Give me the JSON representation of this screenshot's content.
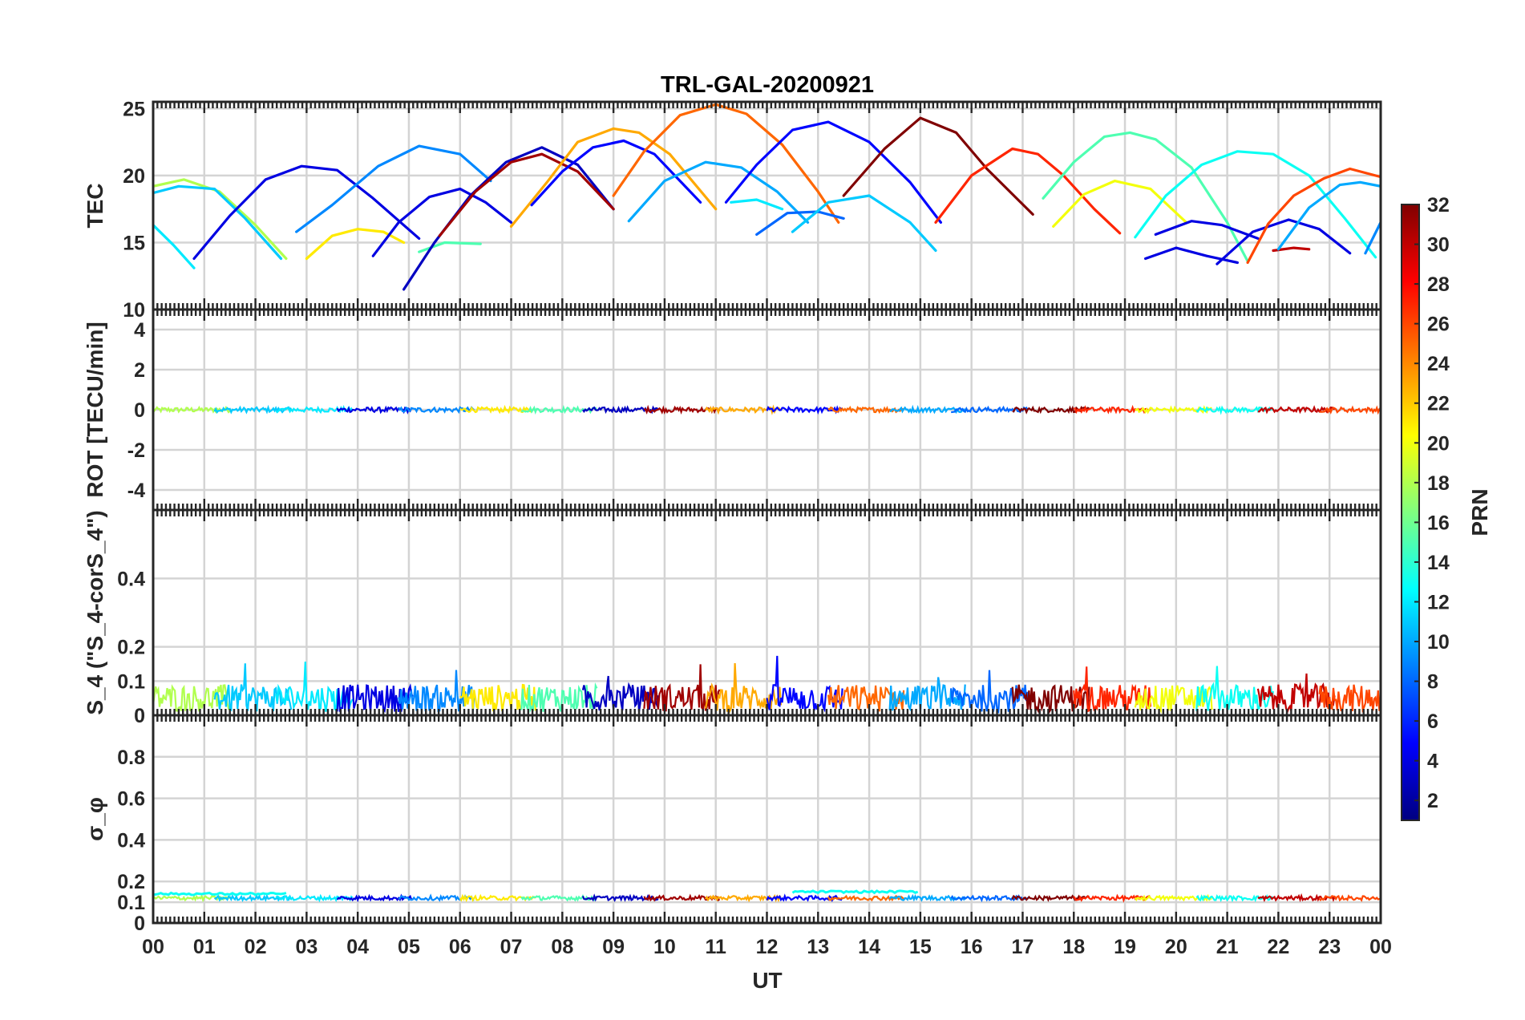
{
  "chart_data": {
    "type": "line",
    "title": "TRL-GAL-20200921",
    "xlabel": "UT",
    "x_ticks": [
      "00",
      "01",
      "02",
      "03",
      "04",
      "05",
      "06",
      "07",
      "08",
      "09",
      "10",
      "11",
      "12",
      "13",
      "14",
      "15",
      "16",
      "17",
      "18",
      "19",
      "20",
      "21",
      "22",
      "23",
      "00"
    ],
    "xlim": [
      0,
      24
    ],
    "grid": true,
    "colorbar": {
      "label": "PRN",
      "range": [
        1,
        32
      ],
      "ticks": [
        "2",
        "4",
        "6",
        "8",
        "10",
        "12",
        "14",
        "16",
        "18",
        "20",
        "22",
        "24",
        "26",
        "28",
        "30",
        "32"
      ],
      "colormap": "jet"
    },
    "panels": [
      {
        "ylabel": "TEC",
        "ylim": [
          10,
          25.5
        ],
        "y_ticks": [
          "10",
          "15",
          "20",
          "25"
        ],
        "series": [
          {
            "prn": 18,
            "x": [
              0.0,
              0.6,
              1.3,
              2.0,
              2.6
            ],
            "y": [
              19.2,
              19.7,
              18.8,
              16.3,
              13.8
            ]
          },
          {
            "prn": 11,
            "x": [
              0.0,
              0.5,
              1.2,
              1.8,
              2.5
            ],
            "y": [
              18.7,
              19.2,
              19.0,
              16.8,
              13.8
            ]
          },
          {
            "prn": 12,
            "x": [
              0.0,
              0.4,
              0.8
            ],
            "y": [
              16.3,
              14.8,
              13.1
            ]
          },
          {
            "prn": 4,
            "x": [
              0.8,
              1.5,
              2.2,
              2.9,
              3.6,
              4.3,
              5.2
            ],
            "y": [
              13.8,
              17.0,
              19.7,
              20.7,
              20.4,
              18.3,
              15.3
            ]
          },
          {
            "prn": 9,
            "x": [
              2.8,
              3.5,
              4.4,
              5.2,
              6.0,
              6.6
            ],
            "y": [
              15.8,
              17.8,
              20.7,
              22.2,
              21.6,
              19.6
            ]
          },
          {
            "prn": 21,
            "x": [
              3.0,
              3.5,
              4.0,
              4.5,
              4.9
            ],
            "y": [
              13.8,
              15.5,
              16.0,
              15.8,
              15.0
            ]
          },
          {
            "prn": 4,
            "x": [
              4.3,
              4.8,
              5.4,
              6.0,
              6.5,
              7.0
            ],
            "y": [
              14.0,
              16.5,
              18.4,
              19.0,
              18.0,
              16.5
            ]
          },
          {
            "prn": 15,
            "x": [
              5.2,
              5.7,
              6.4
            ],
            "y": [
              14.3,
              15.0,
              14.9
            ]
          },
          {
            "prn": 3,
            "x": [
              4.9,
              5.5,
              6.2,
              6.9,
              7.6,
              8.3,
              9.0
            ],
            "y": [
              11.5,
              15.0,
              18.5,
              21.0,
              22.1,
              20.8,
              17.5
            ]
          },
          {
            "prn": 31,
            "x": [
              5.6,
              6.3,
              7.0,
              7.6,
              8.3,
              9.0
            ],
            "y": [
              15.5,
              18.8,
              21.0,
              21.6,
              20.3,
              17.5
            ]
          },
          {
            "prn": 23,
            "x": [
              7.0,
              7.7,
              8.3,
              9.0,
              9.5,
              10.1,
              11.0
            ],
            "y": [
              16.2,
              19.5,
              22.5,
              23.5,
              23.2,
              21.6,
              17.5
            ]
          },
          {
            "prn": 5,
            "x": [
              7.4,
              8.0,
              8.6,
              9.2,
              9.8,
              10.3,
              10.7
            ],
            "y": [
              17.8,
              20.3,
              22.1,
              22.6,
              21.6,
              19.6,
              18.0
            ]
          },
          {
            "prn": 25,
            "x": [
              9.0,
              9.6,
              10.3,
              11.0,
              11.6,
              12.3,
              13.0,
              13.4
            ],
            "y": [
              18.5,
              21.8,
              24.5,
              25.3,
              24.6,
              22.3,
              18.8,
              16.5
            ]
          },
          {
            "prn": 10,
            "x": [
              9.3,
              10.0,
              10.8,
              11.5,
              12.2,
              12.8
            ],
            "y": [
              16.6,
              19.6,
              21.0,
              20.6,
              18.8,
              16.5
            ]
          },
          {
            "prn": 5,
            "x": [
              11.2,
              11.8,
              12.5,
              13.2,
              14.0,
              14.8,
              15.4
            ],
            "y": [
              18.0,
              20.8,
              23.4,
              24.0,
              22.5,
              19.5,
              16.5
            ]
          },
          {
            "prn": 12,
            "x": [
              11.3,
              11.8,
              12.3
            ],
            "y": [
              18.0,
              18.2,
              17.5
            ]
          },
          {
            "prn": 8,
            "x": [
              11.8,
              12.4,
              13.0,
              13.5
            ],
            "y": [
              15.6,
              17.2,
              17.3,
              16.8
            ]
          },
          {
            "prn": 11,
            "x": [
              12.5,
              13.2,
              14.0,
              14.8,
              15.3
            ],
            "y": [
              15.8,
              18.0,
              18.5,
              16.5,
              14.4
            ]
          },
          {
            "prn": 32,
            "x": [
              13.5,
              14.3,
              15.0,
              15.7,
              16.3,
              17.2
            ],
            "y": [
              18.5,
              22.0,
              24.3,
              23.2,
              20.5,
              17.1
            ]
          },
          {
            "prn": 27,
            "x": [
              15.3,
              16.0,
              16.8,
              17.3,
              17.8,
              18.4,
              18.9
            ],
            "y": [
              16.5,
              20.0,
              22.0,
              21.6,
              20.0,
              17.5,
              15.7
            ]
          },
          {
            "prn": 15,
            "x": [
              17.4,
              18.0,
              18.6,
              19.1,
              19.6,
              20.3,
              21.0,
              21.4
            ],
            "y": [
              18.3,
              21.0,
              22.9,
              23.2,
              22.7,
              20.6,
              16.5,
              13.6
            ]
          },
          {
            "prn": 20,
            "x": [
              17.6,
              18.2,
              18.8,
              19.5,
              20.2
            ],
            "y": [
              16.2,
              18.6,
              19.6,
              19.0,
              16.5
            ]
          },
          {
            "prn": 13,
            "x": [
              19.2,
              19.8,
              20.5,
              21.2,
              21.9,
              22.6,
              23.3,
              23.9
            ],
            "y": [
              15.4,
              18.5,
              20.8,
              21.8,
              21.6,
              20.0,
              16.8,
              13.9
            ]
          },
          {
            "prn": 4,
            "x": [
              19.4,
              20.0,
              20.6,
              21.2
            ],
            "y": [
              13.8,
              14.6,
              14.0,
              13.5
            ]
          },
          {
            "prn": 4,
            "x": [
              19.6,
              20.3,
              20.9,
              21.6
            ],
            "y": [
              15.6,
              16.6,
              16.3,
              15.3
            ]
          },
          {
            "prn": 4,
            "x": [
              20.8,
              21.5,
              22.2,
              22.8,
              23.4
            ],
            "y": [
              13.4,
              15.8,
              16.7,
              16.0,
              14.2
            ]
          },
          {
            "prn": 30,
            "x": [
              21.9,
              22.3,
              22.6
            ],
            "y": [
              14.4,
              14.6,
              14.5
            ]
          },
          {
            "prn": 26,
            "x": [
              21.4,
              21.8,
              22.3,
              22.9,
              23.4,
              24.0
            ],
            "y": [
              13.5,
              16.4,
              18.5,
              19.8,
              20.5,
              19.9
            ]
          },
          {
            "prn": 10,
            "x": [
              22.0,
              22.6,
              23.2,
              23.6,
              24.0
            ],
            "y": [
              14.5,
              17.6,
              19.3,
              19.5,
              19.2
            ]
          },
          {
            "prn": 9,
            "x": [
              23.7,
              24.0
            ],
            "y": [
              14.2,
              16.5
            ]
          }
        ]
      },
      {
        "ylabel": "ROT [TECU/min]",
        "ylim": [
          -5,
          5
        ],
        "y_ticks": [
          "-4",
          "-2",
          "0",
          "2",
          "4"
        ],
        "band": {
          "center": 0.0,
          "amplitude": 0.12
        }
      },
      {
        "ylabel": "S_4 (\"S_4-corS_4\")",
        "ylim": [
          0,
          0.6
        ],
        "y_ticks": [
          "0",
          "0.1",
          "0.2",
          "0.4"
        ],
        "band": {
          "center": 0.05,
          "amplitude": 0.04,
          "max_spike": 0.19
        }
      },
      {
        "ylabel": "σ_φ",
        "ylim": [
          0,
          1
        ],
        "y_ticks": [
          "0",
          "0.1",
          "0.2",
          "0.4",
          "0.6",
          "0.8"
        ],
        "band": {
          "center": 0.12,
          "amplitude": 0.01
        },
        "highlights": [
          {
            "prn": 13,
            "x0": 0.0,
            "x1": 2.6,
            "y": 0.14
          },
          {
            "prn": 13,
            "x0": 12.5,
            "x1": 15.0,
            "y": 0.15
          }
        ]
      }
    ]
  }
}
